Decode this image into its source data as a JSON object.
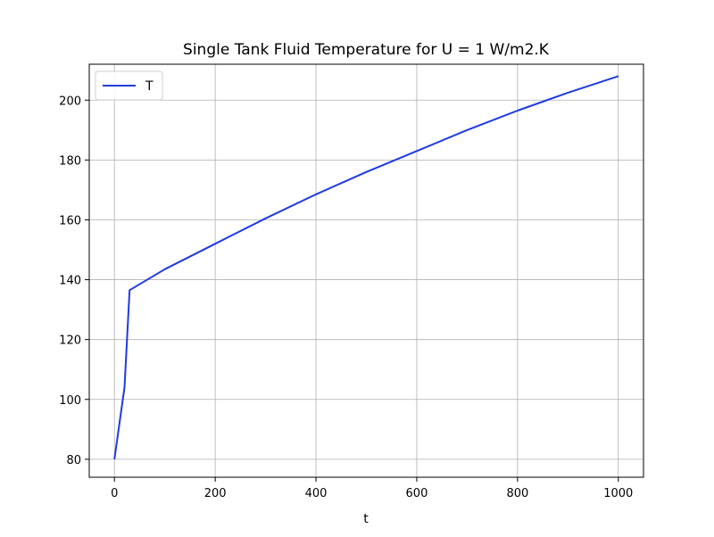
{
  "chart_data": {
    "type": "line",
    "title": "Single Tank Fluid Temperature for U = 1 W/m2.K",
    "xlabel": "t",
    "ylabel": "",
    "xlim": [
      -50,
      1050
    ],
    "ylim": [
      74,
      212
    ],
    "xticks": [
      0,
      200,
      400,
      600,
      800,
      1000
    ],
    "yticks": [
      80,
      100,
      120,
      140,
      160,
      180,
      200
    ],
    "grid": true,
    "legend_position": "top-left",
    "series": [
      {
        "name": "T",
        "color": "#1f3be0",
        "x": [
          0,
          20,
          30,
          100,
          200,
          300,
          400,
          500,
          600,
          700,
          800,
          900,
          1000
        ],
        "y": [
          80,
          104,
          136.5,
          143.5,
          152,
          160.5,
          168.5,
          176,
          183,
          190,
          196.5,
          202.5,
          208
        ]
      }
    ]
  }
}
